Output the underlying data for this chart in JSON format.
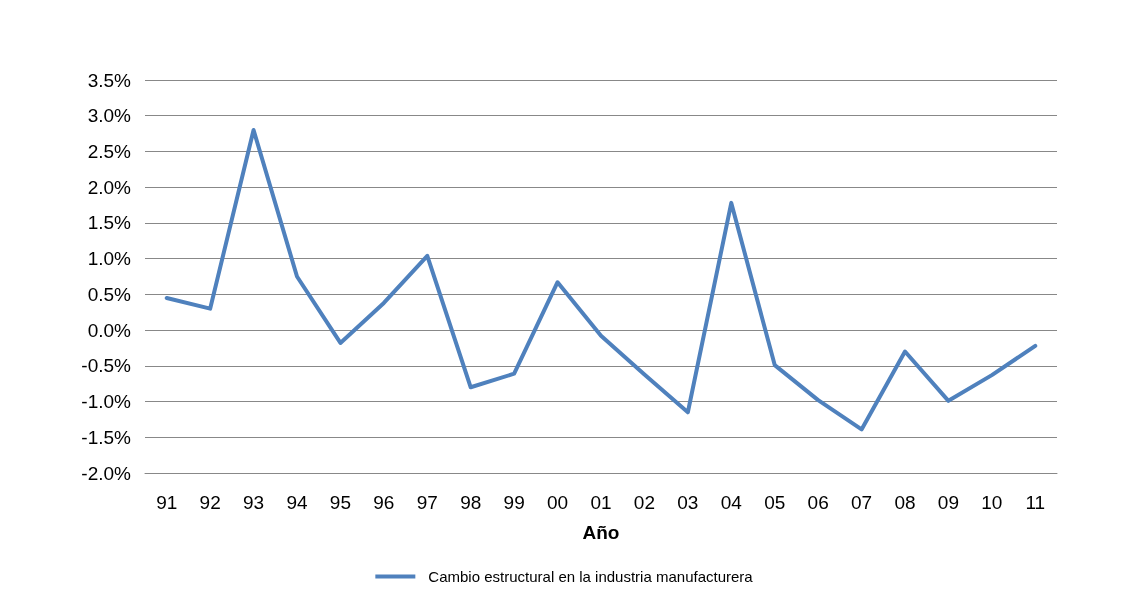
{
  "chart_data": {
    "type": "line",
    "xlabel": "Año",
    "categories": [
      "91",
      "92",
      "93",
      "94",
      "95",
      "96",
      "97",
      "98",
      "99",
      "00",
      "01",
      "02",
      "03",
      "04",
      "05",
      "06",
      "07",
      "08",
      "09",
      "10",
      "11"
    ],
    "series": [
      {
        "name": "Cambio estructural en la industria manufacturera",
        "color": "#4f81bd",
        "values": [
          0.45,
          0.3,
          2.8,
          0.75,
          -0.18,
          0.38,
          1.04,
          -0.8,
          -0.61,
          0.67,
          -0.08,
          -0.62,
          -1.15,
          1.78,
          -0.49,
          -0.98,
          -1.39,
          -0.3,
          -0.99,
          -0.63,
          -0.22
        ]
      }
    ],
    "ylim": [
      -2.0,
      3.5
    ],
    "yticks": [
      {
        "value": -2.0,
        "label": "-2.0%"
      },
      {
        "value": -1.5,
        "label": "-1.5%"
      },
      {
        "value": -1.0,
        "label": "-1.0%"
      },
      {
        "value": -0.5,
        "label": "-0.5%"
      },
      {
        "value": 0,
        "label": "0.0%"
      },
      {
        "value": 0.5,
        "label": "0.5%"
      },
      {
        "value": 1.0,
        "label": "1.0%"
      },
      {
        "value": 1.5,
        "label": "1.5%"
      },
      {
        "value": 2.0,
        "label": "2.0%"
      },
      {
        "value": 2.5,
        "label": "2.5%"
      },
      {
        "value": 3.0,
        "label": "3.0%"
      },
      {
        "value": 3.5,
        "label": "3.5%"
      }
    ],
    "grid": "y",
    "legend": "bottom",
    "marker": "none",
    "line_style": "solid"
  }
}
